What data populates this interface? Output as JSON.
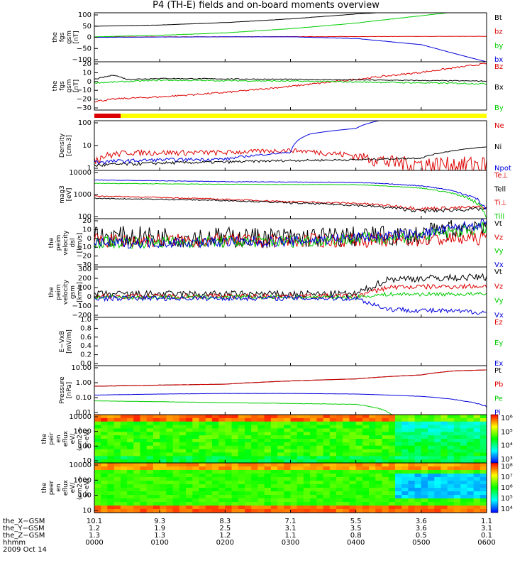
{
  "title": "P4 (TH-E) fields and on-board moments overview",
  "date": "2009 Oct 14",
  "colors": {
    "black": "#000000",
    "red": "#dd0000",
    "green": "#00cc00",
    "blue": "#0000dd",
    "yellow": "#ffff00"
  },
  "chart_data": {
    "type": "line",
    "x_unit": "hhmm",
    "x_range": [
      "0000",
      "0600"
    ],
    "panels": [
      {
        "id": "fgs_gsm_1",
        "ylabel": [
          "the",
          "fgs",
          "gsm",
          "[nT]"
        ],
        "yticks": [
          "100",
          "50",
          "0",
          "−50",
          "−100"
        ],
        "ylim": [
          -100,
          100
        ],
        "legend": [
          {
            "text": "Bt",
            "color": "black"
          },
          {
            "text": "bz",
            "color": "red"
          },
          {
            "text": "by",
            "color": "green"
          },
          {
            "text": "bx",
            "color": "blue"
          }
        ]
      },
      {
        "id": "fgs_gsm_2",
        "ylabel": [
          "the",
          "fgs",
          "gsm",
          "[nT]"
        ],
        "yticks": [
          "20",
          "10",
          "0",
          "−10",
          "−20",
          "−30"
        ],
        "ylim": [
          -35,
          20
        ],
        "legend": [
          {
            "text": "Bz",
            "color": "red"
          },
          {
            "text": "Bx",
            "color": "black"
          },
          {
            "text": "By",
            "color": "green"
          }
        ]
      },
      {
        "id": "density",
        "ylabel": [
          "Density",
          "[cm-3]"
        ],
        "yticks": [
          "100",
          "10",
          "1"
        ],
        "log": true,
        "legend": [
          {
            "text": "Ne",
            "color": "red"
          },
          {
            "text": "Ni",
            "color": "black"
          },
          {
            "text": "Npot",
            "color": "blue"
          }
        ]
      },
      {
        "id": "temperature",
        "ylabel": [
          "mag3",
          "[eV]"
        ],
        "yticks": [
          "10000",
          "1000",
          "100"
        ],
        "log": true,
        "legend": [
          {
            "text": "Te⊥",
            "color": "red"
          },
          {
            "text": "Tell",
            "color": "black"
          },
          {
            "text": "Ti⊥",
            "color": "red"
          },
          {
            "text": "Till",
            "color": "green"
          }
        ]
      },
      {
        "id": "peim_velocity_dsl",
        "ylabel": [
          "the",
          "peim",
          "velocity",
          "dsl",
          "[km/s]"
        ],
        "yticks": [
          "20",
          "10",
          "0",
          "−10",
          "−20",
          "−30"
        ],
        "ylim": [
          -30,
          25
        ],
        "legend": [
          {
            "text": "Vt",
            "color": "black"
          },
          {
            "text": "Vz",
            "color": "red"
          },
          {
            "text": "Vy",
            "color": "green"
          },
          {
            "text": "Vx",
            "color": "blue"
          }
        ]
      },
      {
        "id": "peim_velocity_gsm",
        "ylabel": [
          "the",
          "peim",
          "velocity",
          "gsm",
          "[km/s]"
        ],
        "yticks": [
          "300",
          "200",
          "100",
          "0",
          "−100",
          "−200"
        ],
        "ylim": [
          -200,
          300
        ],
        "legend": [
          {
            "text": "Vt",
            "color": "black"
          },
          {
            "text": "Vz",
            "color": "red"
          },
          {
            "text": "Vy",
            "color": "green"
          },
          {
            "text": "Vx",
            "color": "blue"
          }
        ]
      },
      {
        "id": "e_vxb",
        "ylabel": [
          "E−VxB",
          "[mV/m]"
        ],
        "yticks": [
          "1.0",
          "0.8",
          "0.6",
          "0.4",
          "0.2",
          "0.0"
        ],
        "ylim": [
          0,
          1
        ],
        "legend": [
          {
            "text": "Ez",
            "color": "red"
          },
          {
            "text": "Ey",
            "color": "green"
          },
          {
            "text": "Ex",
            "color": "blue"
          }
        ]
      },
      {
        "id": "pressure",
        "ylabel": [
          "Pressure",
          "[nPa]"
        ],
        "yticks": [
          "10.00",
          "1.00",
          "0.10",
          "0.01"
        ],
        "log": true,
        "legend": [
          {
            "text": "Pt",
            "color": "black"
          },
          {
            "text": "Pb",
            "color": "red"
          },
          {
            "text": "Pe",
            "color": "green"
          },
          {
            "text": "Pi",
            "color": "blue"
          }
        ]
      },
      {
        "id": "peir_eflux",
        "ylabel": [
          "the",
          "peir",
          "en",
          "eflux",
          "eV/",
          "(cm2-s-",
          "sr-eV)"
        ],
        "yticks": [
          "10000",
          "1000",
          "100",
          "10"
        ],
        "type": "heatmap",
        "colorbar": [
          "10⁶",
          "10⁵",
          "10⁴",
          "10³"
        ]
      },
      {
        "id": "peer_eflux",
        "ylabel": [
          "the",
          "peer",
          "en",
          "eflux",
          "eV/",
          "(cm2-s-",
          "sr-eV)"
        ],
        "yticks": [
          "10000",
          "1000",
          "100",
          "10"
        ],
        "type": "heatmap",
        "colorbar": [
          "10⁸",
          "10⁷",
          "10⁶",
          "10⁵",
          "10⁴"
        ]
      }
    ],
    "bx_sample": [
      [
        0,
        0
      ],
      [
        1,
        1
      ],
      [
        2,
        2
      ],
      [
        3,
        2
      ],
      [
        4,
        -5
      ],
      [
        5,
        -30
      ],
      [
        5.7,
        -80
      ],
      [
        6,
        -100
      ]
    ],
    "bt_sample": [
      [
        0,
        45
      ],
      [
        1,
        50
      ],
      [
        2,
        60
      ],
      [
        3,
        75
      ],
      [
        4,
        95
      ],
      [
        4.3,
        100
      ]
    ],
    "ephemeris": [
      {
        "label": "the_X−GSM",
        "values": [
          "10.1",
          "9.3",
          "8.3",
          "7.1",
          "5.5",
          "3.6",
          "1.1"
        ]
      },
      {
        "label": "the_Y−GSM",
        "values": [
          "1.2",
          "1.9",
          "2.5",
          "3.1",
          "3.5",
          "3.6",
          "3.1"
        ]
      },
      {
        "label": "the_Z−GSM",
        "values": [
          "1.3",
          "1.3",
          "1.2",
          "1.1",
          "0.8",
          "0.5",
          "0.1"
        ]
      },
      {
        "label": "hhmm",
        "values": [
          "0000",
          "0100",
          "0200",
          "0300",
          "0400",
          "0500",
          "0600"
        ]
      }
    ]
  }
}
